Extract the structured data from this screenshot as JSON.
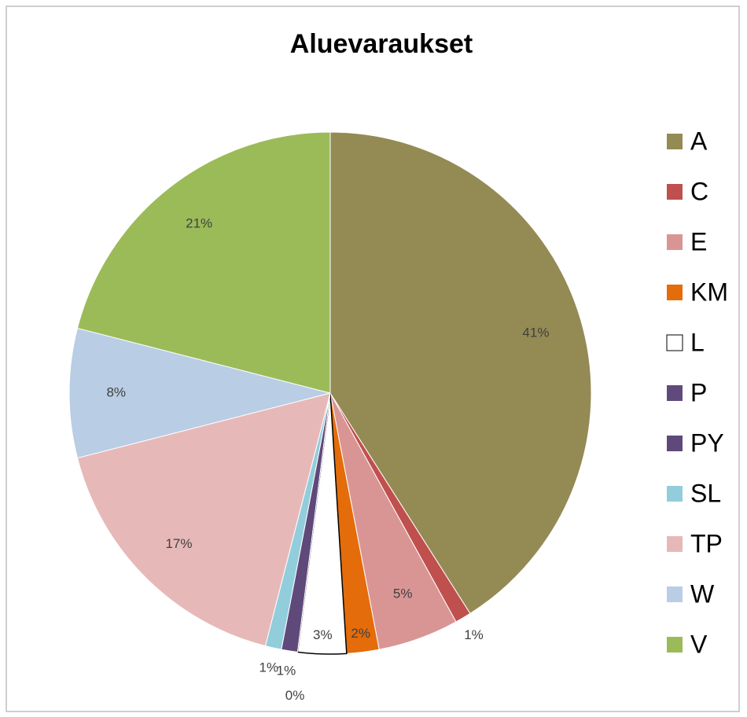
{
  "chart_data": {
    "type": "pie",
    "title": "Aluevaraukset",
    "categories": [
      "A",
      "C",
      "E",
      "KM",
      "L",
      "P",
      "PY",
      "SL",
      "TP",
      "W",
      "V"
    ],
    "values": [
      41,
      1,
      5,
      2,
      3,
      0,
      1,
      1,
      17,
      8,
      21
    ],
    "value_labels": [
      "41%",
      "1%",
      "5%",
      "2%",
      "3%",
      "0%",
      "1%",
      "1%",
      "17%",
      "8%",
      "21%"
    ],
    "colors": [
      "#948a54",
      "#c0504d",
      "#d99594",
      "#e46c0a",
      "#ffffff",
      "#604a7b",
      "#5f497a",
      "#92cddc",
      "#e6b9b8",
      "#b9cde5",
      "#9bbb59"
    ],
    "legend": "right"
  }
}
